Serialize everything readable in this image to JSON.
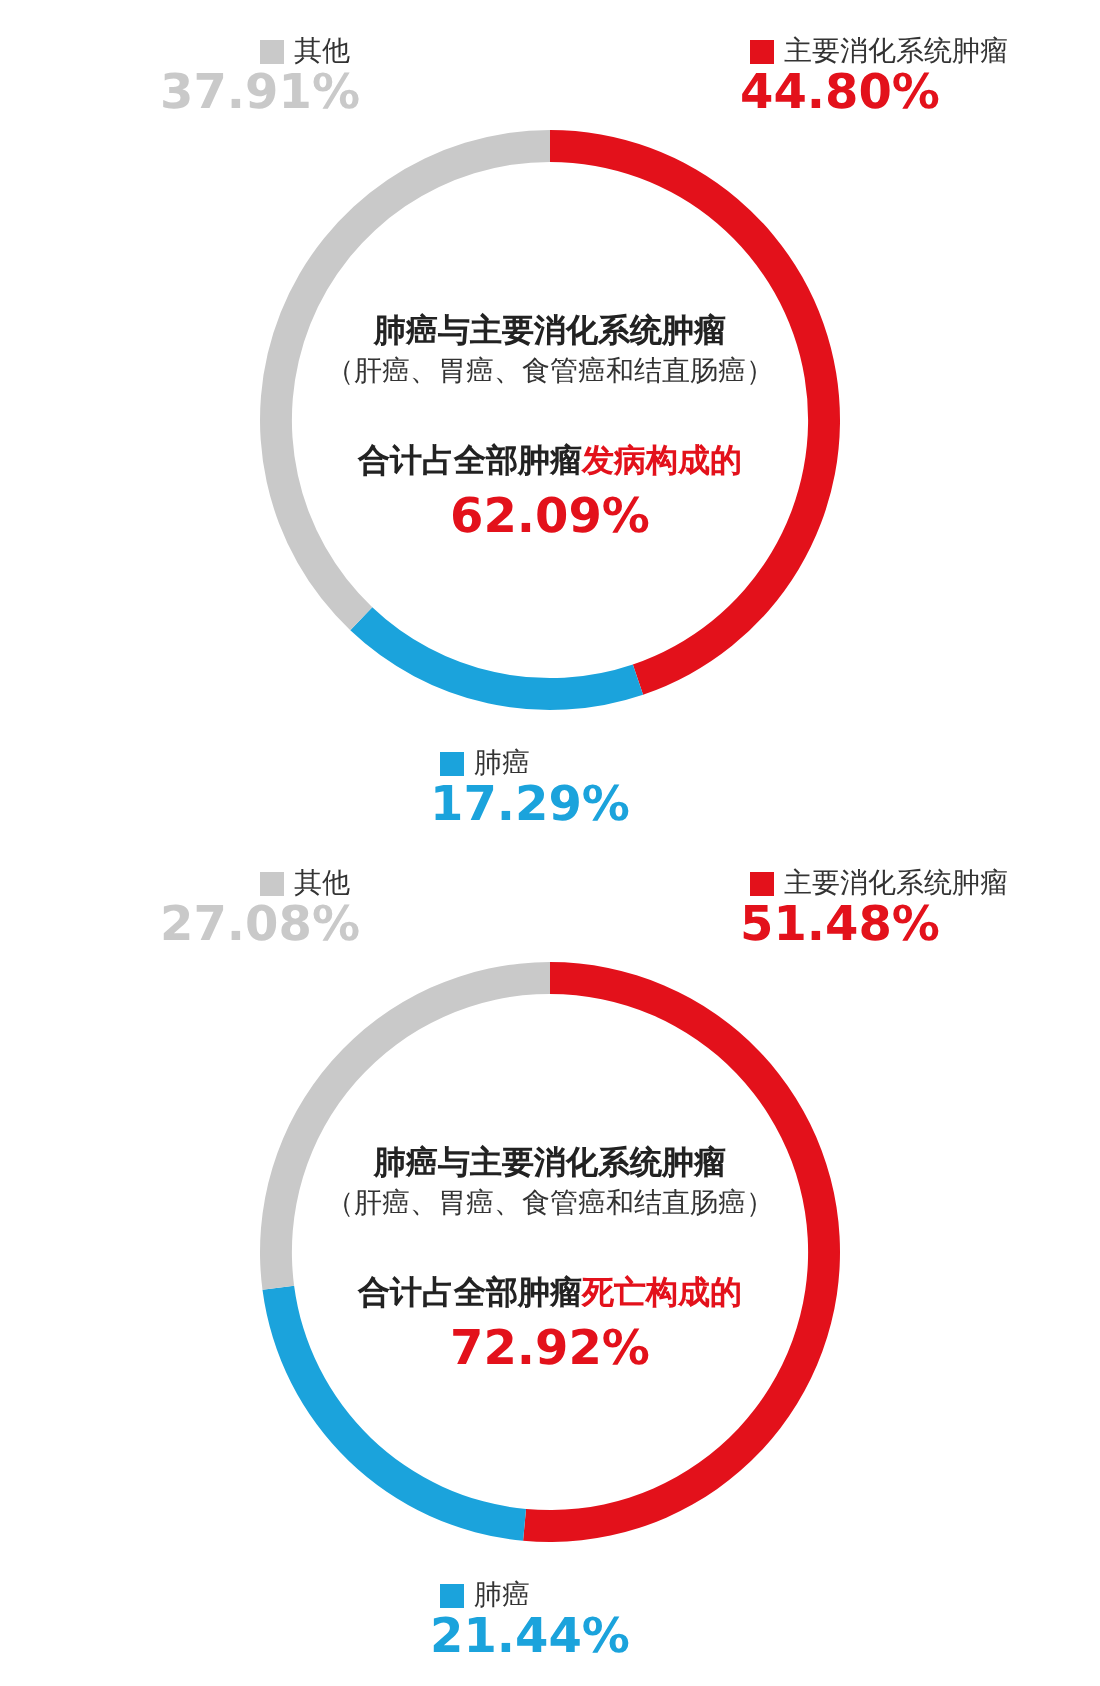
{
  "chart_data": [
    {
      "type": "donut",
      "title": "肺癌与主要消化系统肿瘤",
      "subtitle": "（肝癌、胃癌、食管癌和结直肠癌）",
      "annotations": [
        "合计占全部肿瘤",
        "发病构成的",
        "62.09%"
      ],
      "categories": [
        "主要消化系统肿瘤",
        "肺癌",
        "其他"
      ],
      "values": [
        44.8,
        17.29,
        37.91
      ],
      "colors": [
        "#e3111b",
        "#1ba3dc",
        "#c9c9c9"
      ],
      "value_labels": [
        "44.80%",
        "17.29%",
        "37.91%"
      ],
      "legend": "top"
    },
    {
      "type": "donut",
      "title": "肺癌与主要消化系统肿瘤",
      "subtitle": "（肝癌、胃癌、食管癌和结直肠癌）",
      "annotations": [
        "合计占全部肿瘤",
        "死亡构成的",
        "72.92%"
      ],
      "categories": [
        "主要消化系统肿瘤",
        "肺癌",
        "其他"
      ],
      "values": [
        51.48,
        21.44,
        27.08
      ],
      "colors": [
        "#e3111b",
        "#1ba3dc",
        "#c9c9c9"
      ],
      "value_labels": [
        "51.48%",
        "21.44%",
        "27.08%"
      ],
      "legend": "top"
    }
  ]
}
